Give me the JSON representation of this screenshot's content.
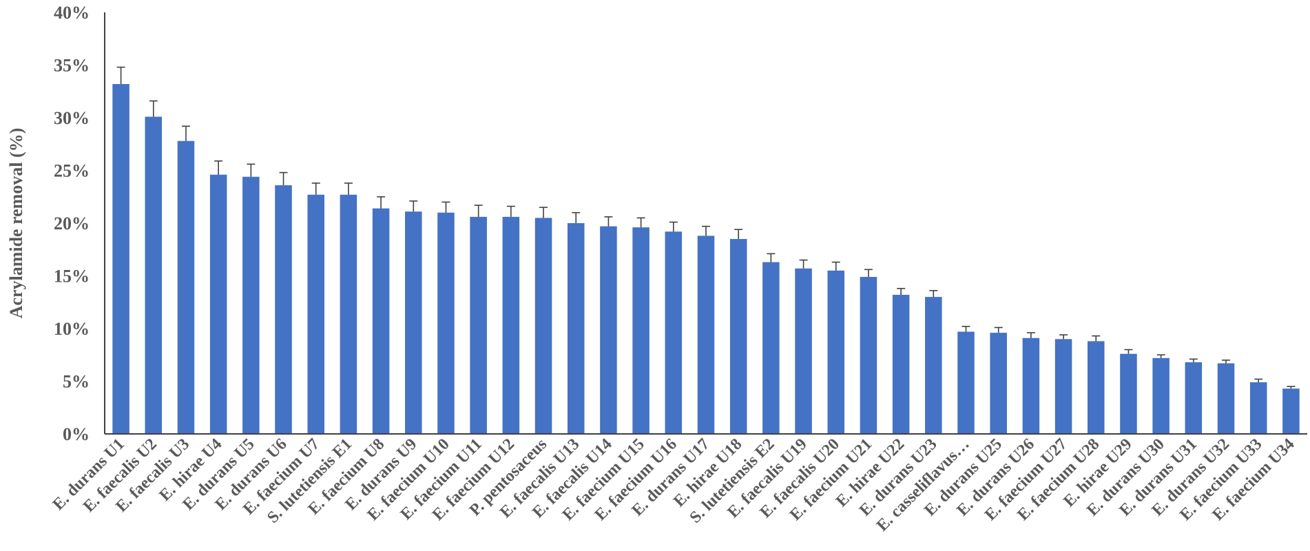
{
  "chart_data": {
    "type": "bar",
    "ylabel": "Acrylamide removal (%)",
    "xlabel": "",
    "ylim": [
      0,
      40
    ],
    "yticks": [
      "0%",
      "5%",
      "10%",
      "15%",
      "20%",
      "25%",
      "30%",
      "35%",
      "40%"
    ],
    "grid": false,
    "legend": "none",
    "bar_color": "#4472C4",
    "error_color": "#404040",
    "categories": [
      "E. durans U1",
      "E. faecalis U2",
      "E. faecalis U3",
      "E. hirae U4",
      "E. durans U5",
      "E. durans U6",
      "E. faecium U7",
      "S. lutetiensis E1",
      "E. faecium U8",
      "E. durans U9",
      "E. faecium U10",
      "E. faecium U11",
      "E. faecium U12",
      "P. pentosaceus",
      "E. faecalis U13",
      "E. faecalis U14",
      "E. faecium U15",
      "E. faecium U16",
      "E. durans U17",
      "E. hirae U18",
      "S. lutetiensis E2",
      "E. faecalis U19",
      "E. faecalis U20",
      "E. faecium U21",
      "E. hirae U22",
      "E. durans U23",
      "E. casseliflavus…",
      "E. durans U25",
      "E. durans U26",
      "E. faecium U27",
      "E. faecium U28",
      "E. hirae U29",
      "E. durans U30",
      "E. durans U31",
      "E. durans U32",
      "E. faecium U33",
      "E. faecium U34"
    ],
    "values": [
      33.2,
      30.1,
      27.8,
      24.6,
      24.4,
      23.6,
      22.7,
      22.7,
      21.4,
      21.1,
      21.0,
      20.6,
      20.6,
      20.5,
      20.0,
      19.7,
      19.6,
      19.2,
      18.8,
      18.5,
      16.3,
      15.7,
      15.5,
      14.9,
      13.2,
      13.0,
      9.7,
      9.6,
      9.1,
      9.0,
      8.8,
      7.6,
      7.2,
      6.8,
      6.7,
      4.9,
      4.3
    ],
    "errors": [
      1.6,
      1.5,
      1.4,
      1.3,
      1.2,
      1.2,
      1.1,
      1.1,
      1.1,
      1.0,
      1.0,
      1.1,
      1.0,
      1.0,
      1.0,
      0.9,
      0.9,
      0.9,
      0.9,
      0.9,
      0.8,
      0.8,
      0.8,
      0.7,
      0.6,
      0.6,
      0.5,
      0.5,
      0.5,
      0.4,
      0.5,
      0.4,
      0.3,
      0.3,
      0.3,
      0.3,
      0.2
    ]
  }
}
